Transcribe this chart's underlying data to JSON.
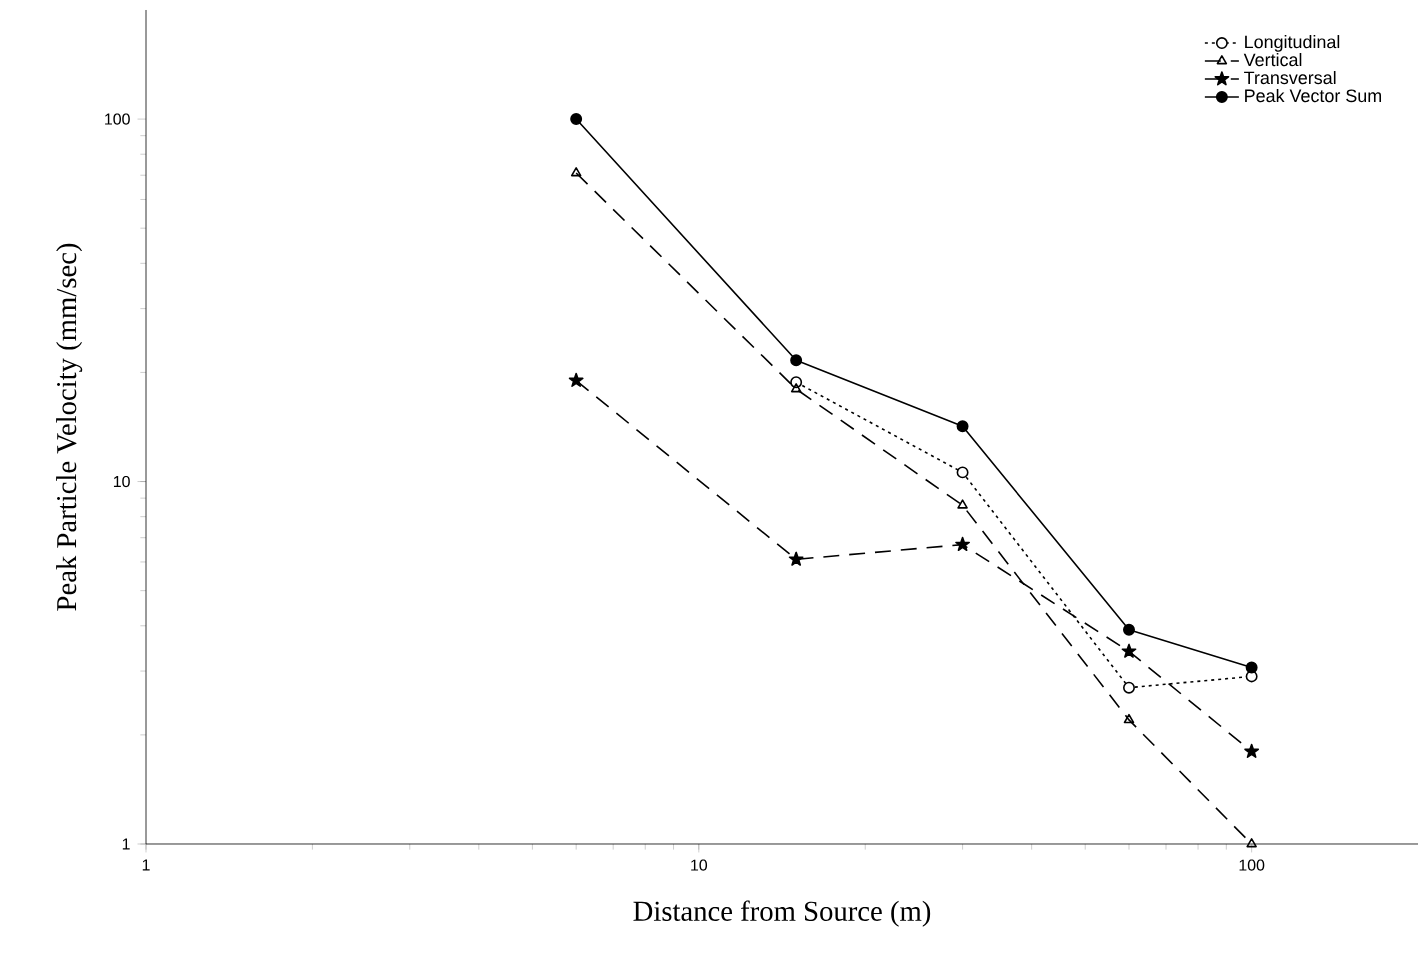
{
  "chart_data": {
    "type": "line",
    "xlabel": "Distance from Source (m)",
    "ylabel": "Peak Particle Velocity (mm/sec)",
    "log": "xy",
    "xlim": [
      1,
      200
    ],
    "ylim": [
      1,
      200
    ],
    "xticks": [
      1,
      10,
      100
    ],
    "yticks": [
      1,
      10,
      100
    ],
    "legend": "top right",
    "grid": false,
    "x": [
      6,
      15,
      30,
      60,
      100
    ],
    "series": [
      {
        "name": "Longitudinal",
        "color": "#000000",
        "marker": "circle",
        "line_style": "dotted",
        "values": [
          null,
          18.8,
          10.6,
          2.7,
          2.9
        ]
      },
      {
        "name": "Vertical",
        "color": "#000000",
        "marker": "triangle",
        "line_style": "dashed",
        "values": [
          71,
          18,
          8.6,
          2.2,
          1.0
        ]
      },
      {
        "name": "Transversal",
        "color": "#000000",
        "marker": "star",
        "line_style": "dashed",
        "values": [
          19,
          6.1,
          6.7,
          3.4,
          1.8
        ]
      },
      {
        "name": "Peak Vector Sum",
        "color": "#000000",
        "marker": "circle",
        "line_style": "solid",
        "values": [
          100,
          21.6,
          14.2,
          3.9,
          3.07
        ]
      }
    ]
  }
}
